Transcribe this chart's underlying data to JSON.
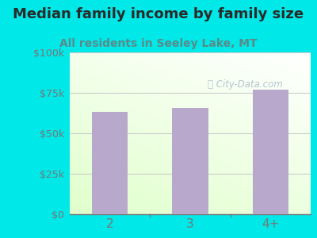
{
  "categories": [
    "2",
    "3",
    "4+"
  ],
  "values": [
    63000,
    65500,
    77000
  ],
  "bar_color": "#b8a8cc",
  "title": "Median family income by family size",
  "subtitle": "All residents in Seeley Lake, MT",
  "title_color": "#2a2a2a",
  "subtitle_color": "#5a8a8a",
  "bg_outer": "#00e8e8",
  "yticks": [
    0,
    25000,
    50000,
    75000,
    100000
  ],
  "ytick_labels": [
    "$0",
    "$25k",
    "$50k",
    "$75k",
    "$100k"
  ],
  "ylim": [
    0,
    100000
  ],
  "watermark": "City-Data.com",
  "watermark_color": "#aabbcc",
  "axis_color": "#777777",
  "grid_color": "#cccccc",
  "title_fontsize": 13,
  "subtitle_fontsize": 10
}
